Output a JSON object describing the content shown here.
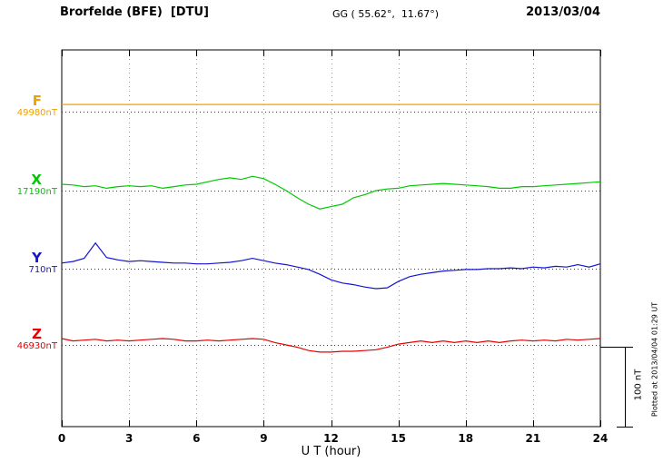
{
  "header": {
    "station_title": "Brorfelde (BFE)  [DTU]",
    "coordinates": "GG ( 55.62°,  11.67°)",
    "date": "2013/03/04"
  },
  "axis": {
    "xlabel": "U T (hour)",
    "tick_hours": [
      0,
      3,
      6,
      9,
      12,
      15,
      18,
      21,
      24
    ],
    "x_range_hours": [
      0,
      24
    ]
  },
  "scale_bar": {
    "label": "100 nT",
    "span_nT": 100
  },
  "side_note": "Plotted at 2013/04/04 01:29 UT",
  "chart_data": {
    "type": "line",
    "title": "Brorfelde (BFE) [DTU] magnetogram 2013/03/04",
    "xlabel": "U T (hour)",
    "x_range": [
      0,
      24
    ],
    "grid": "dotted vertical lines every 3 hours; dotted horizontal baseline per component",
    "legend_position": "left margin component labels",
    "scale_nT_per_division": 100,
    "x_hours": [
      0,
      0.5,
      1,
      1.5,
      2,
      2.5,
      3,
      3.5,
      4,
      4.5,
      5,
      5.5,
      6,
      6.5,
      7,
      7.5,
      8,
      8.5,
      9,
      9.5,
      10,
      10.5,
      11,
      11.5,
      12,
      12.5,
      13,
      13.5,
      14,
      14.5,
      15,
      15.5,
      16,
      16.5,
      17,
      17.5,
      18,
      18.5,
      19,
      19.5,
      20,
      20.5,
      21,
      21.5,
      22,
      22.5,
      23,
      23.5,
      24
    ],
    "series": [
      {
        "name": "F",
        "baseline_value_label": "49980nT",
        "baseline_nT": 49980,
        "color": "#f0a000",
        "baseline_color": "#2323c8",
        "offsets_nT": [
          9,
          9,
          9,
          9,
          9,
          9,
          9,
          9,
          9,
          9,
          9,
          9,
          9,
          9,
          9,
          9,
          9,
          9,
          9,
          9,
          9,
          9,
          9,
          9,
          9,
          9,
          9,
          9,
          9,
          9,
          9,
          9,
          9,
          9,
          9,
          9,
          9,
          9,
          9,
          9,
          9,
          9,
          9,
          9,
          9,
          9,
          9,
          9,
          9
        ]
      },
      {
        "name": "X",
        "baseline_value_label": "17190nT",
        "baseline_nT": 17190,
        "color": "#00c800",
        "baseline_color": "#3a3a3a",
        "offsets_nT": [
          8,
          7,
          5,
          6,
          3,
          5,
          6,
          5,
          6,
          3,
          5,
          7,
          8,
          11,
          14,
          16,
          14,
          18,
          15,
          8,
          0,
          -9,
          -17,
          -23,
          -20,
          -17,
          -9,
          -5,
          0,
          2,
          3,
          6,
          7,
          8,
          9,
          8,
          7,
          6,
          5,
          3,
          3,
          5,
          5,
          6,
          7,
          8,
          9,
          10,
          11
        ]
      },
      {
        "name": "Y",
        "baseline_value_label": "710nT",
        "baseline_nT": 710,
        "color": "#1414d2",
        "baseline_color": "#3a3a3a",
        "offsets_nT": [
          7,
          9,
          13,
          32,
          14,
          11,
          9,
          10,
          9,
          8,
          7,
          7,
          6,
          6,
          7,
          8,
          10,
          13,
          10,
          7,
          5,
          2,
          -1,
          -7,
          -14,
          -18,
          -20,
          -23,
          -25,
          -24,
          -16,
          -10,
          -7,
          -5,
          -3,
          -2,
          -1,
          -1,
          0,
          0,
          1,
          0,
          2,
          1,
          3,
          2,
          5,
          2,
          6
        ]
      },
      {
        "name": "Z",
        "baseline_value_label": "46930nT",
        "baseline_nT": 46930,
        "color": "#e60000",
        "baseline_color": "#3a3a3a",
        "offsets_nT": [
          8,
          5,
          6,
          7,
          5,
          6,
          5,
          6,
          7,
          8,
          7,
          5,
          5,
          6,
          5,
          6,
          7,
          8,
          7,
          3,
          0,
          -3,
          -7,
          -9,
          -9,
          -8,
          -8,
          -7,
          -6,
          -3,
          1,
          3,
          5,
          3,
          5,
          3,
          5,
          3,
          5,
          3,
          5,
          6,
          5,
          6,
          5,
          7,
          6,
          7,
          8
        ]
      }
    ]
  }
}
